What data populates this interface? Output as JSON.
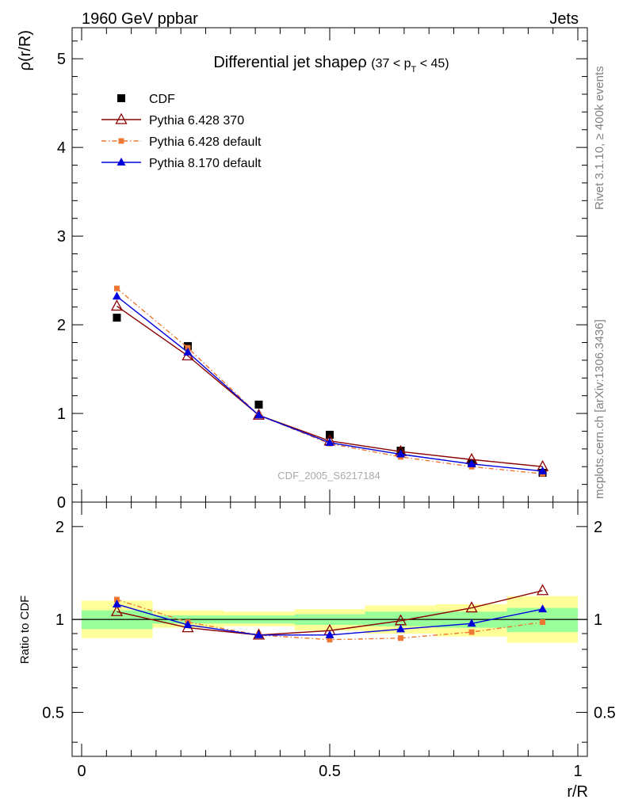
{
  "header": {
    "energy_label": "1960 GeV ppbar",
    "process_label": "Jets"
  },
  "side_text": {
    "rivet": "Rivet 3.1.10, ≥ 400k events",
    "mcplots": "mcplots.cern.ch [arXiv:1306.3436]"
  },
  "chart_data": {
    "type": "line",
    "title": "Differential jet shapeρ",
    "title_cut": "(37 < p_T < 45)",
    "title_cut_parts": {
      "open": "(37 < p",
      "sub": "T",
      "close": " < 45)"
    },
    "watermark": "CDF_2005_S6217184",
    "xlabel": "r/R",
    "ylabel": "ρ(r/R)",
    "ratio_ylabel": "Ratio to CDF",
    "xlim": [
      0,
      1
    ],
    "ylim": [
      0,
      5.35
    ],
    "ratio_ylim": [
      0.36,
      2.4
    ],
    "x_ticks": [
      {
        "v": 0,
        "label": "0"
      },
      {
        "v": 0.5,
        "label": "0.5"
      },
      {
        "v": 1,
        "label": "1"
      }
    ],
    "y_ticks": [
      {
        "v": 0,
        "label": "0"
      },
      {
        "v": 1,
        "label": "1"
      },
      {
        "v": 2,
        "label": "2"
      },
      {
        "v": 3,
        "label": "3"
      },
      {
        "v": 4,
        "label": "4"
      },
      {
        "v": 5,
        "label": "5"
      }
    ],
    "ratio_ticks": [
      {
        "v": 0.5,
        "label": "0.5"
      },
      {
        "v": 1,
        "label": "1"
      },
      {
        "v": 2,
        "label": "2"
      }
    ],
    "ratio_scale": "log",
    "legend_position": "top-left",
    "x": [
      0.071,
      0.214,
      0.357,
      0.5,
      0.643,
      0.786,
      0.929
    ],
    "bin_edges": [
      0,
      0.143,
      0.286,
      0.429,
      0.571,
      0.714,
      0.857,
      1.0
    ],
    "series": [
      {
        "name": "CDF",
        "values": [
          2.08,
          1.76,
          1.1,
          0.76,
          0.58,
          0.44,
          0.33
        ],
        "color": "#000000",
        "marker": "square",
        "line": "none"
      },
      {
        "name": "Pythia 6.428 370",
        "values": [
          2.21,
          1.65,
          0.98,
          0.69,
          0.57,
          0.48,
          0.4
        ],
        "color": "#8b0000",
        "marker": "triangle-open",
        "line": "solid"
      },
      {
        "name": "Pythia 6.428 default",
        "values": [
          2.41,
          1.74,
          0.98,
          0.66,
          0.51,
          0.4,
          0.32
        ],
        "color": "#ee7733",
        "marker": "square-small",
        "line": "dashdot"
      },
      {
        "name": "Pythia 8.170 default",
        "values": [
          2.32,
          1.69,
          0.98,
          0.67,
          0.54,
          0.43,
          0.35
        ],
        "color": "#0000dd",
        "marker": "triangle-filled",
        "line": "solid"
      }
    ],
    "ratio_series": [
      {
        "name": "Pythia 6.428 370",
        "values": [
          1.06,
          0.94,
          0.89,
          0.92,
          0.99,
          1.09,
          1.24
        ]
      },
      {
        "name": "Pythia 6.428 default",
        "values": [
          1.16,
          0.98,
          0.89,
          0.86,
          0.87,
          0.91,
          0.98
        ]
      },
      {
        "name": "Pythia 8.170 default",
        "values": [
          1.12,
          0.96,
          0.89,
          0.89,
          0.93,
          0.97,
          1.08
        ]
      }
    ],
    "uncertainty_bands": {
      "yellow": [
        [
          0.87,
          1.15
        ],
        [
          0.94,
          1.07
        ],
        [
          0.95,
          1.06
        ],
        [
          0.92,
          1.08
        ],
        [
          0.9,
          1.11
        ],
        [
          0.88,
          1.12
        ],
        [
          0.84,
          1.19
        ]
      ],
      "green": [
        [
          0.93,
          1.07
        ],
        [
          0.97,
          1.03
        ],
        [
          0.97,
          1.03
        ],
        [
          0.96,
          1.04
        ],
        [
          0.95,
          1.06
        ],
        [
          0.94,
          1.06
        ],
        [
          0.91,
          1.09
        ]
      ],
      "colors": {
        "yellow": "#ffff99",
        "green": "#99ff99"
      }
    }
  }
}
